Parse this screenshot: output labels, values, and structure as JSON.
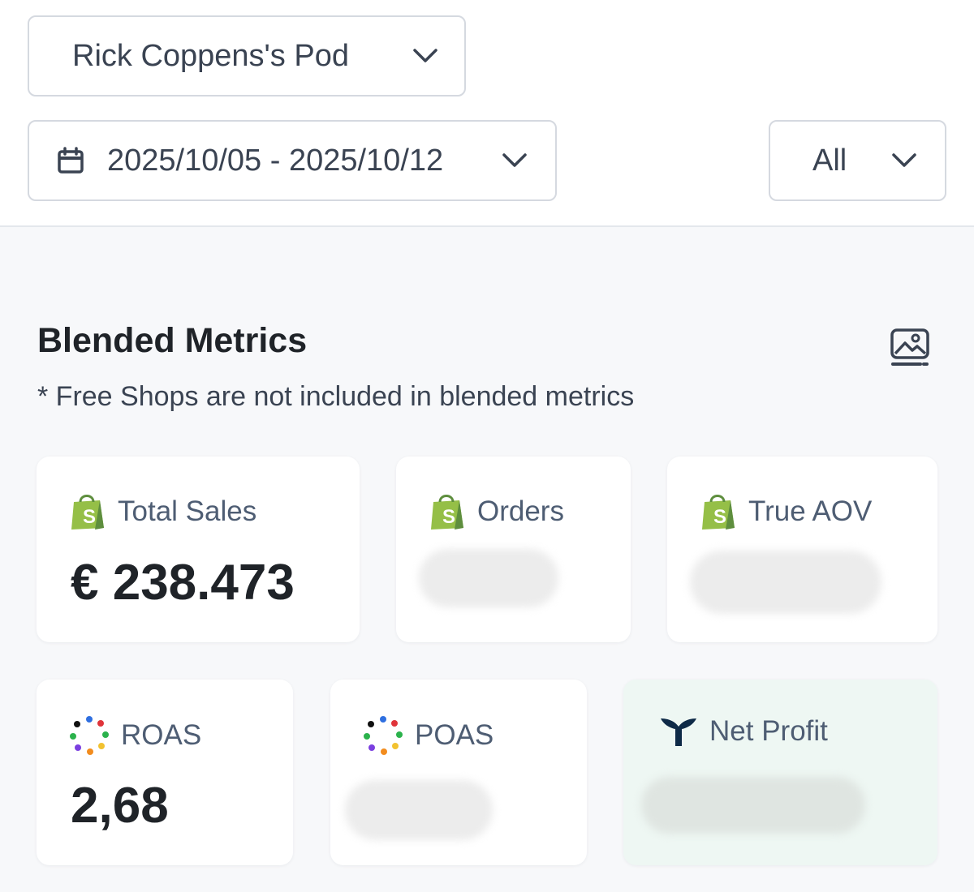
{
  "header": {
    "pod_selector": {
      "value": "Rick Coppens's Pod",
      "icon": "chevron-down-icon"
    },
    "date_range": {
      "value": "2025/10/05 - 2025/10/12",
      "icon": "calendar-icon"
    },
    "filter": {
      "value": "All",
      "icon": "chevron-down-icon"
    }
  },
  "section": {
    "title": "Blended Metrics",
    "note": "* Free Shops are not included in blended metrics",
    "export_icon": "image-export-icon"
  },
  "metrics": [
    {
      "label": "Total Sales",
      "value": "€ 238.473",
      "icon": "shopify-icon"
    },
    {
      "label": "Orders",
      "value": "",
      "icon": "shopify-icon",
      "blurred": true
    },
    {
      "label": "True AOV",
      "value": "",
      "icon": "shopify-icon",
      "blurred": true
    },
    {
      "label": "ROAS",
      "value": "2,68",
      "icon": "pixel-dots-icon"
    },
    {
      "label": "POAS",
      "value": "",
      "icon": "pixel-dots-icon",
      "blurred": true
    },
    {
      "label": "Net Profit",
      "value": "",
      "icon": "triple-whale-icon",
      "blurred": true
    }
  ],
  "colors": {
    "shopify_green": "#95bf47",
    "whale_navy": "#0e2a47",
    "mint_card": "#eef7f3"
  }
}
